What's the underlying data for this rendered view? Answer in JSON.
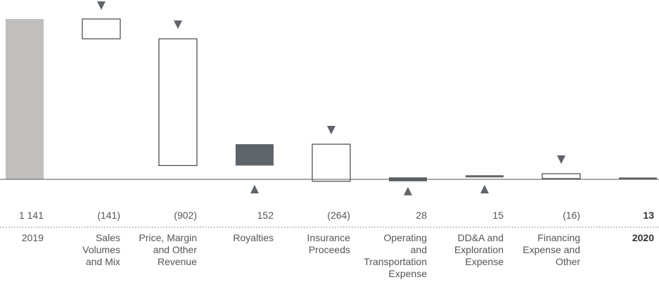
{
  "chart_data": {
    "type": "waterfall",
    "title": "",
    "xlabel": "",
    "ylabel": "",
    "unit_note": "",
    "colors": {
      "start": "#c0bfbe",
      "increase": "#5f646b",
      "decrease_fill": "#ffffff",
      "decrease_stroke": "#444444",
      "end": "#5f646b",
      "axis": "#555555",
      "marker": "#5f646b",
      "dotted": "#888888"
    },
    "bars": [
      {
        "category": [
          "2019"
        ],
        "label": "1 141",
        "value": 1141,
        "kind": "start",
        "marker": "none",
        "bold": false
      },
      {
        "category": [
          "Sales",
          "Volumes",
          "and Mix"
        ],
        "label": "(141)",
        "value": -141,
        "kind": "decrease",
        "marker": "down",
        "bold": false
      },
      {
        "category": [
          "Price, Margin",
          "and Other",
          "Revenue"
        ],
        "label": "(902)",
        "value": -902,
        "kind": "decrease",
        "marker": "down",
        "bold": false
      },
      {
        "category": [
          "Royalties"
        ],
        "label": "152",
        "value": 152,
        "kind": "increase",
        "marker": "up",
        "bold": false
      },
      {
        "category": [
          "Insurance",
          "Proceeds"
        ],
        "label": "(264)",
        "value": -264,
        "kind": "decrease",
        "marker": "down",
        "bold": false
      },
      {
        "category": [
          "Operating",
          "and",
          "Transportation",
          "Expense"
        ],
        "label": "28",
        "value": 28,
        "kind": "increase",
        "marker": "up",
        "bold": false
      },
      {
        "category": [
          "DD&A and",
          "Exploration",
          "Expense"
        ],
        "label": "15",
        "value": 15,
        "kind": "increase",
        "marker": "up",
        "bold": false
      },
      {
        "category": [
          "Financing",
          "Expense and",
          "Other"
        ],
        "label": "(16)",
        "value": -16,
        "kind": "decrease",
        "marker": "down",
        "bold": false
      },
      {
        "category": [
          "2020"
        ],
        "label": "13",
        "value": 13,
        "kind": "end",
        "marker": "none",
        "bold": true
      }
    ]
  }
}
